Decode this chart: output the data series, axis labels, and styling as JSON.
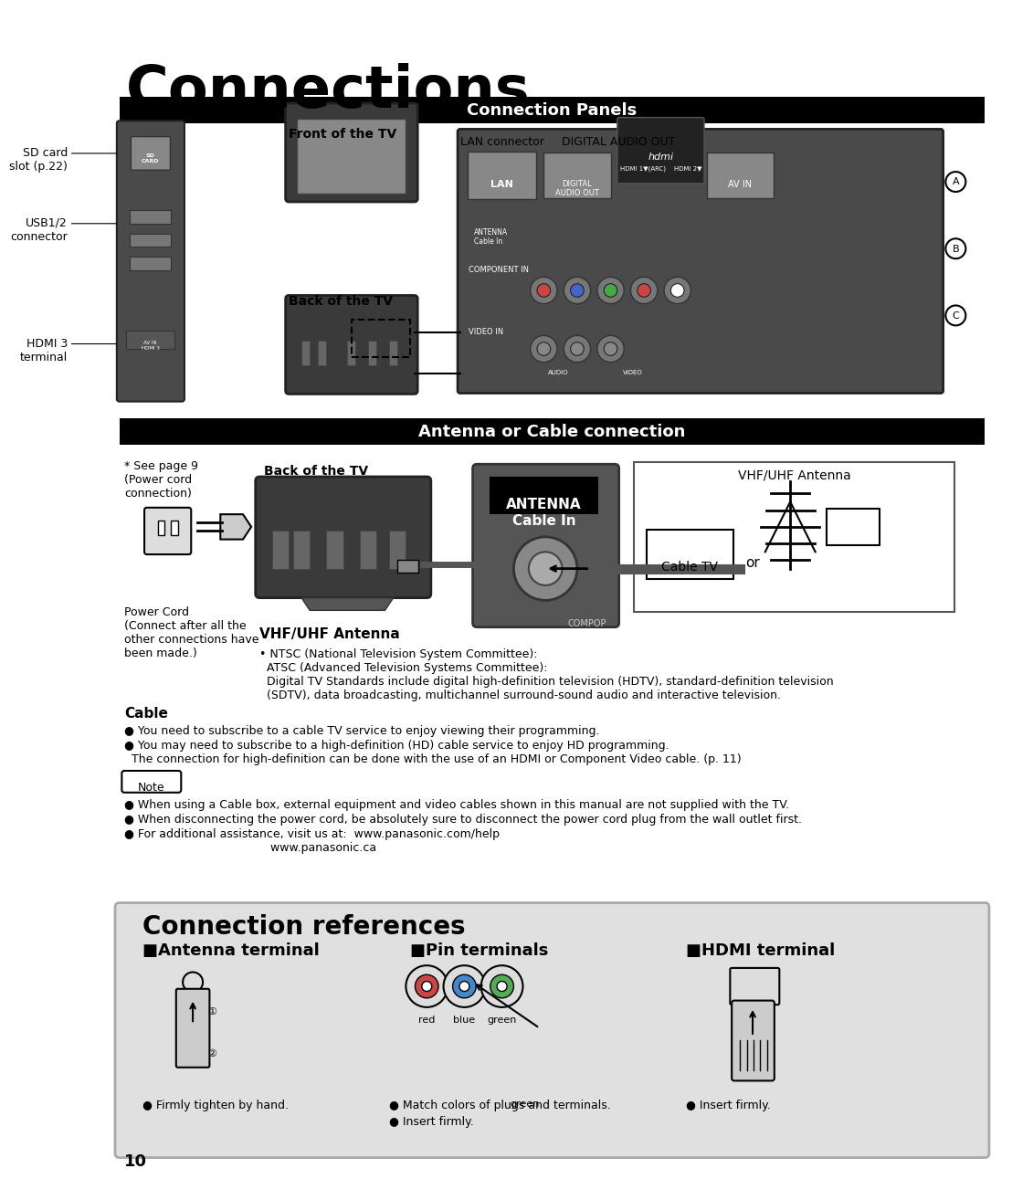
{
  "title": "Connections",
  "section1_title": "Connection Panels",
  "section2_title": "Antenna or Cable connection",
  "section3_title": "Connection references",
  "bg_color": "#ffffff",
  "section_bg": "#000000",
  "section_text_color": "#ffffff",
  "body_text_color": "#000000",
  "ref_bg": "#e0e0e0",
  "page_number": "10",
  "front_label": "Front of the TV",
  "back_label": "Back of the TV",
  "back_label2": "Back of the TV",
  "lan_label": "LAN connector",
  "digital_label": "DIGITAL AUDIO OUT",
  "sd_label": "SD card\nslot (p.22)",
  "usb_label": "USB1/2\nconnector",
  "hdmi3_label": "HDMI 3\nterminal",
  "see_page_label": "* See page 9\n(Power cord\nconnection)",
  "power_cord_label": "Power Cord\n(Connect after all the\nother connections have\nbeen made.)",
  "vhf_title": "VHF/UHF Antenna",
  "vhf_bullet": "• NTSC (National Television System Committee):\n  ATSC (Advanced Television Systems Committee):\n  Digital TV Standards include digital high-definition television (HDTV), standard-definition television\n  (SDTV), data broadcasting, multichannel surround-sound audio and interactive television.",
  "cable_title": "Cable",
  "cable_bullet1": "● You need to subscribe to a cable TV service to enjoy viewing their programming.",
  "cable_bullet2": "● You may need to subscribe to a high-definition (HD) cable service to enjoy HD programming.\n  The connection for high-definition can be done with the use of an HDMI or Component Video cable. (p. 11)",
  "note_label": "Note",
  "note_bullet1": "● When using a Cable box, external equipment and video cables shown in this manual are not supplied with the TV.",
  "note_bullet2": "● When disconnecting the power cord, be absolutely sure to disconnect the power cord plug from the wall outlet first.",
  "note_bullet3": "● For additional assistance, visit us at:  www.panasonic.com/help\n                                        www.panasonic.ca",
  "ant_ref_title": "■Antenna terminal",
  "pin_ref_title": "■Pin terminals",
  "hdmi_ref_title": "■HDMI terminal",
  "ant_bullet": "● Firmly tighten by hand.",
  "pin_bullet1": "● Match colors of plugs and terminals.",
  "pin_bullet2": "● Insert firmly.",
  "hdmi_bullet": "● Insert firmly.",
  "vhf_antenna_label": "VHF/UHF Antenna",
  "cable_tv_label": "Cable TV",
  "or_label": "or",
  "antenna_cable_in": "ANTENNA\nCable In",
  "compop_label": "COMPOP",
  "red_label": "red",
  "blue_label": "blue",
  "green_label": "green",
  "green_label2": "green"
}
